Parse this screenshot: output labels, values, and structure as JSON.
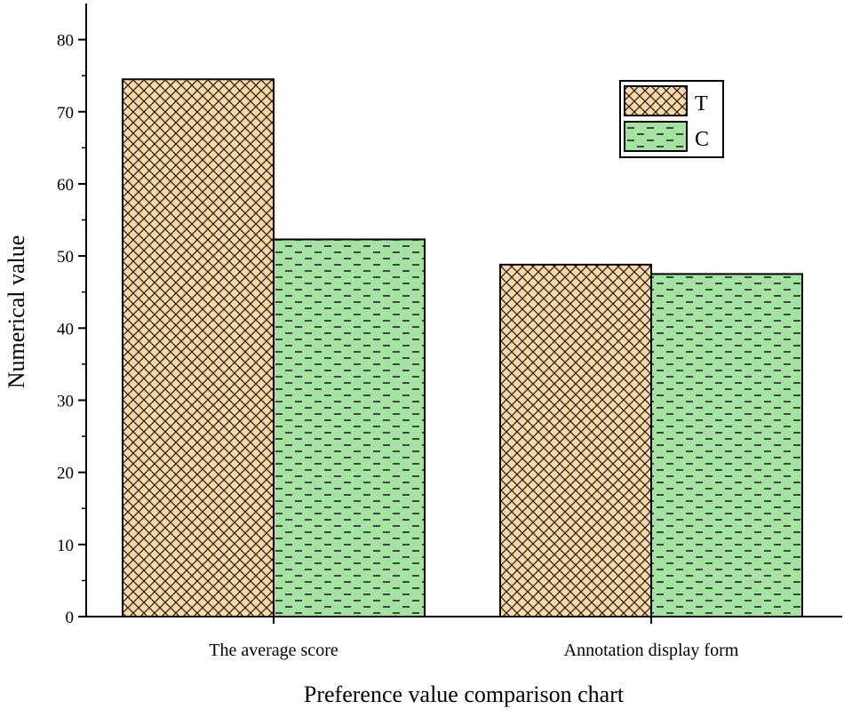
{
  "chart_data": {
    "type": "bar",
    "title": "",
    "xlabel": "Preference value comparison chart",
    "ylabel": "Numerical value",
    "categories": [
      "The average score",
      "Annotation display form"
    ],
    "series": [
      {
        "name": "T",
        "values": [
          74.5,
          48.8
        ],
        "color": "#fcd8a4",
        "pattern": "crosshatch"
      },
      {
        "name": "C",
        "values": [
          52.3,
          47.5
        ],
        "color": "#a6e3a2",
        "pattern": "dashes"
      }
    ],
    "ylim": [
      0,
      85
    ],
    "yticks": [
      0,
      10,
      20,
      30,
      40,
      50,
      60,
      70,
      80
    ],
    "grid": false,
    "legend": "top-right"
  }
}
